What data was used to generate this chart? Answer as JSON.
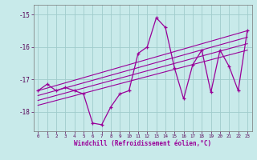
{
  "title": "",
  "xlabel": "Windchill (Refroidissement éolien,°C)",
  "ylabel": "",
  "background_color": "#c8eaea",
  "grid_color": "#a0cccc",
  "line_color": "#990099",
  "hours": [
    0,
    1,
    2,
    3,
    4,
    5,
    6,
    7,
    8,
    9,
    10,
    11,
    12,
    13,
    14,
    15,
    16,
    17,
    18,
    19,
    20,
    21,
    22,
    23
  ],
  "values": [
    -17.35,
    -17.15,
    -17.35,
    -17.25,
    -17.35,
    -17.45,
    -18.35,
    -18.4,
    -17.85,
    -17.45,
    -17.35,
    -16.2,
    -16.0,
    -15.1,
    -15.4,
    -16.65,
    -17.6,
    -16.55,
    -16.1,
    -17.4,
    -16.1,
    -16.6,
    -17.35,
    -15.5
  ],
  "ylim": [
    -18.6,
    -14.7
  ],
  "yticks": [
    -18,
    -17,
    -16,
    -15
  ],
  "xlim": [
    -0.5,
    23.5
  ],
  "trend_lines": [
    {
      "x0": 0,
      "y0": -17.35,
      "x1": 23,
      "y1": -15.5
    },
    {
      "x0": 0,
      "y0": -17.5,
      "x1": 23,
      "y1": -15.7
    },
    {
      "x0": 0,
      "y0": -17.65,
      "x1": 23,
      "y1": -15.9
    },
    {
      "x0": 0,
      "y0": -17.8,
      "x1": 23,
      "y1": -16.1
    }
  ]
}
